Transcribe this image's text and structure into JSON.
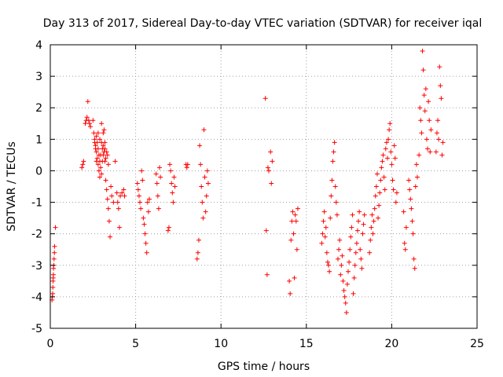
{
  "chart_data": {
    "type": "scatter",
    "title": "Day 313 of 2017, Sidereal Day-to-day VTEC variation (SDTVAR) for receiver iqal",
    "xlabel": "GPS time / hours",
    "ylabel": "SDTVAR / TECUs",
    "xlim": [
      0,
      25
    ],
    "ylim": [
      -5,
      4
    ],
    "xticks": [
      0,
      5,
      10,
      15,
      20,
      25
    ],
    "yticks": [
      -5,
      -4,
      -3,
      -2,
      -1,
      0,
      1,
      2,
      3,
      4
    ],
    "xtick_labels": [
      "0",
      "5",
      "10",
      "15",
      "20",
      "25"
    ],
    "ytick_labels": [
      "-5",
      "-4",
      "-3",
      "-2",
      "-1",
      "0",
      "1",
      "2",
      "3",
      "4"
    ],
    "grid": true,
    "marker": "+",
    "color": "#ff0000",
    "series": [
      {
        "name": "SDTVAR",
        "points": [
          [
            0.1,
            -4.1
          ],
          [
            0.12,
            -4.0
          ],
          [
            0.14,
            -3.9
          ],
          [
            0.15,
            -3.7
          ],
          [
            0.16,
            -3.5
          ],
          [
            0.17,
            -3.4
          ],
          [
            0.18,
            -3.3
          ],
          [
            0.19,
            -3.1
          ],
          [
            0.2,
            -3.0
          ],
          [
            0.22,
            -2.8
          ],
          [
            0.24,
            -2.6
          ],
          [
            0.25,
            -2.4
          ],
          [
            0.3,
            -1.8
          ],
          [
            1.85,
            0.1
          ],
          [
            1.9,
            0.2
          ],
          [
            1.95,
            0.3
          ],
          [
            2.05,
            1.5
          ],
          [
            2.1,
            1.6
          ],
          [
            2.15,
            1.7
          ],
          [
            2.2,
            2.2
          ],
          [
            2.25,
            1.6
          ],
          [
            2.3,
            1.5
          ],
          [
            2.35,
            1.4
          ],
          [
            2.5,
            1.6
          ],
          [
            2.55,
            1.2
          ],
          [
            2.6,
            1.0
          ],
          [
            2.65,
            0.8
          ],
          [
            2.7,
            0.6
          ],
          [
            2.75,
            0.4
          ],
          [
            2.8,
            0.2
          ],
          [
            2.85,
            0.0
          ],
          [
            2.9,
            -0.2
          ],
          [
            2.95,
            0.5
          ],
          [
            3.0,
            0.9
          ],
          [
            3.05,
            0.7
          ],
          [
            3.1,
            0.5
          ],
          [
            3.15,
            1.3
          ],
          [
            3.2,
            0.3
          ],
          [
            3.25,
            -0.3
          ],
          [
            3.3,
            -0.6
          ],
          [
            3.35,
            -0.9
          ],
          [
            3.4,
            -1.2
          ],
          [
            3.45,
            -1.6
          ],
          [
            3.5,
            -2.1
          ],
          [
            3.55,
            -0.5
          ],
          [
            3.6,
            -0.8
          ],
          [
            3.7,
            -1.0
          ],
          [
            2.7,
            1.1
          ],
          [
            2.75,
            0.9
          ],
          [
            2.8,
            0.7
          ],
          [
            2.85,
            0.5
          ],
          [
            2.9,
            0.3
          ],
          [
            2.95,
            0.1
          ],
          [
            3.0,
            -0.1
          ],
          [
            3.05,
            0.3
          ],
          [
            3.1,
            0.8
          ],
          [
            3.15,
            0.6
          ],
          [
            3.2,
            0.9
          ],
          [
            3.25,
            0.4
          ],
          [
            3.3,
            0.6
          ],
          [
            2.6,
            0.9
          ],
          [
            2.65,
            0.7
          ],
          [
            2.7,
            0.3
          ],
          [
            2.8,
            1.2
          ],
          [
            2.9,
            1.0
          ],
          [
            3.0,
            1.5
          ],
          [
            3.1,
            1.2
          ],
          [
            3.2,
            0.7
          ],
          [
            3.35,
            0.5
          ],
          [
            3.4,
            0.2
          ],
          [
            3.8,
            0.3
          ],
          [
            3.9,
            -0.7
          ],
          [
            3.95,
            -1.0
          ],
          [
            4.0,
            -1.2
          ],
          [
            4.05,
            -1.8
          ],
          [
            4.1,
            -0.8
          ],
          [
            4.2,
            -0.7
          ],
          [
            4.3,
            -0.6
          ],
          [
            4.35,
            -0.8
          ],
          [
            5.1,
            -0.4
          ],
          [
            5.15,
            -0.6
          ],
          [
            5.2,
            -0.8
          ],
          [
            5.25,
            -1.0
          ],
          [
            5.3,
            -1.2
          ],
          [
            5.35,
            0.0
          ],
          [
            5.4,
            -0.3
          ],
          [
            5.45,
            -1.5
          ],
          [
            5.5,
            -1.7
          ],
          [
            5.55,
            -2.0
          ],
          [
            5.6,
            -2.3
          ],
          [
            5.65,
            -2.6
          ],
          [
            5.7,
            -1.0
          ],
          [
            5.75,
            -1.3
          ],
          [
            5.8,
            -0.9
          ],
          [
            6.2,
            -0.1
          ],
          [
            6.25,
            -0.4
          ],
          [
            6.3,
            -0.8
          ],
          [
            6.35,
            -1.2
          ],
          [
            6.4,
            0.1
          ],
          [
            6.45,
            -0.2
          ],
          [
            6.9,
            -1.9
          ],
          [
            6.95,
            -1.8
          ],
          [
            7.0,
            0.2
          ],
          [
            7.05,
            0.0
          ],
          [
            7.1,
            -0.4
          ],
          [
            7.15,
            -0.7
          ],
          [
            7.2,
            -1.0
          ],
          [
            7.25,
            -0.2
          ],
          [
            7.3,
            -0.5
          ],
          [
            7.95,
            0.2
          ],
          [
            8.0,
            0.1
          ],
          [
            8.05,
            0.2
          ],
          [
            8.6,
            -2.8
          ],
          [
            8.65,
            -2.6
          ],
          [
            8.7,
            -2.2
          ],
          [
            8.75,
            0.8
          ],
          [
            8.8,
            0.2
          ],
          [
            8.85,
            -0.5
          ],
          [
            8.9,
            -1.0
          ],
          [
            8.95,
            -1.5
          ],
          [
            9.0,
            1.3
          ],
          [
            9.05,
            -0.2
          ],
          [
            9.1,
            -1.3
          ],
          [
            9.15,
            -0.8
          ],
          [
            9.2,
            0.0
          ],
          [
            9.25,
            -0.4
          ],
          [
            12.6,
            2.3
          ],
          [
            12.65,
            -1.9
          ],
          [
            12.7,
            -3.3
          ],
          [
            12.75,
            0.1
          ],
          [
            12.8,
            0.0
          ],
          [
            12.9,
            0.6
          ],
          [
            12.95,
            -0.4
          ],
          [
            13.0,
            0.3
          ],
          [
            14.0,
            -3.5
          ],
          [
            14.05,
            -3.9
          ],
          [
            14.1,
            -2.2
          ],
          [
            14.15,
            -1.6
          ],
          [
            14.2,
            -1.3
          ],
          [
            14.25,
            -2.0
          ],
          [
            14.3,
            -3.4
          ],
          [
            14.35,
            -1.4
          ],
          [
            14.4,
            -1.6
          ],
          [
            14.45,
            -2.5
          ],
          [
            14.5,
            -1.2
          ],
          [
            15.9,
            -2.3
          ],
          [
            15.95,
            -2.0
          ],
          [
            16.0,
            -1.6
          ],
          [
            16.05,
            -1.3
          ],
          [
            16.1,
            -2.1
          ],
          [
            16.15,
            -1.8
          ],
          [
            16.2,
            -2.6
          ],
          [
            16.25,
            -2.9
          ],
          [
            16.3,
            -3.0
          ],
          [
            16.35,
            -3.2
          ],
          [
            16.4,
            -1.5
          ],
          [
            16.45,
            -0.8
          ],
          [
            16.5,
            -0.3
          ],
          [
            16.55,
            0.3
          ],
          [
            16.6,
            0.6
          ],
          [
            16.65,
            0.9
          ],
          [
            16.7,
            -0.5
          ],
          [
            16.75,
            -1.0
          ],
          [
            16.8,
            -1.4
          ],
          [
            16.85,
            -2.8
          ],
          [
            16.9,
            -2.5
          ],
          [
            16.95,
            -2.2
          ],
          [
            17.0,
            -3.3
          ],
          [
            17.05,
            -3.0
          ],
          [
            17.1,
            -2.7
          ],
          [
            17.15,
            -3.5
          ],
          [
            17.2,
            -3.8
          ],
          [
            17.25,
            -4.0
          ],
          [
            17.3,
            -4.2
          ],
          [
            17.35,
            -4.5
          ],
          [
            17.4,
            -3.6
          ],
          [
            17.45,
            -3.2
          ],
          [
            17.5,
            -2.9
          ],
          [
            17.55,
            -2.5
          ],
          [
            17.6,
            -2.1
          ],
          [
            17.65,
            -1.8
          ],
          [
            17.7,
            -1.4
          ],
          [
            17.75,
            -3.9
          ],
          [
            17.8,
            -3.4
          ],
          [
            17.85,
            -3.0
          ],
          [
            17.9,
            -2.6
          ],
          [
            17.95,
            -2.3
          ],
          [
            18.0,
            -1.9
          ],
          [
            18.05,
            -1.6
          ],
          [
            18.1,
            -1.3
          ],
          [
            18.15,
            -2.5
          ],
          [
            18.2,
            -2.8
          ],
          [
            18.25,
            -3.1
          ],
          [
            18.3,
            -2.0
          ],
          [
            18.35,
            -1.7
          ],
          [
            18.4,
            -1.4
          ],
          [
            18.7,
            -2.6
          ],
          [
            18.75,
            -2.2
          ],
          [
            18.8,
            -1.8
          ],
          [
            18.85,
            -1.4
          ],
          [
            18.9,
            -2.0
          ],
          [
            18.95,
            -1.6
          ],
          [
            19.0,
            -1.2
          ],
          [
            19.05,
            -0.8
          ],
          [
            19.1,
            -0.5
          ],
          [
            19.15,
            -0.1
          ],
          [
            19.2,
            -1.5
          ],
          [
            19.25,
            -1.1
          ],
          [
            19.3,
            -0.7
          ],
          [
            19.35,
            -0.3
          ],
          [
            19.4,
            0.1
          ],
          [
            19.45,
            0.3
          ],
          [
            19.5,
            0.5
          ],
          [
            19.55,
            -0.2
          ],
          [
            19.6,
            -0.6
          ],
          [
            19.65,
            0.7
          ],
          [
            19.7,
            0.9
          ],
          [
            19.75,
            0.4
          ],
          [
            19.8,
            1.0
          ],
          [
            19.85,
            1.3
          ],
          [
            19.9,
            1.5
          ],
          [
            19.95,
            0.6
          ],
          [
            20.0,
            0.2
          ],
          [
            20.05,
            -0.3
          ],
          [
            20.1,
            -0.6
          ],
          [
            20.15,
            0.8
          ],
          [
            20.2,
            0.4
          ],
          [
            20.25,
            -1.0
          ],
          [
            20.3,
            -0.7
          ],
          [
            20.7,
            -1.3
          ],
          [
            20.75,
            -2.3
          ],
          [
            20.8,
            -2.5
          ],
          [
            20.85,
            -1.8
          ],
          [
            21.0,
            -0.3
          ],
          [
            21.05,
            -0.6
          ],
          [
            21.1,
            -0.9
          ],
          [
            21.15,
            -1.2
          ],
          [
            21.2,
            -1.6
          ],
          [
            21.25,
            -2.0
          ],
          [
            21.3,
            -2.8
          ],
          [
            21.35,
            -3.1
          ],
          [
            21.4,
            -0.5
          ],
          [
            21.45,
            0.2
          ],
          [
            21.5,
            -0.2
          ],
          [
            21.6,
            0.5
          ],
          [
            21.65,
            2.0
          ],
          [
            21.7,
            1.6
          ],
          [
            21.75,
            1.2
          ],
          [
            21.8,
            3.8
          ],
          [
            21.85,
            3.2
          ],
          [
            21.9,
            2.4
          ],
          [
            21.95,
            1.9
          ],
          [
            22.0,
            2.6
          ],
          [
            22.05,
            1.0
          ],
          [
            22.1,
            0.7
          ],
          [
            22.15,
            2.2
          ],
          [
            22.2,
            1.6
          ],
          [
            22.25,
            0.6
          ],
          [
            22.3,
            1.3
          ],
          [
            22.6,
            0.6
          ],
          [
            22.65,
            1.2
          ],
          [
            22.7,
            1.6
          ],
          [
            22.75,
            1.0
          ],
          [
            22.8,
            3.3
          ],
          [
            22.85,
            2.7
          ],
          [
            22.9,
            2.3
          ],
          [
            22.95,
            0.5
          ],
          [
            23.0,
            0.9
          ]
        ]
      }
    ]
  }
}
